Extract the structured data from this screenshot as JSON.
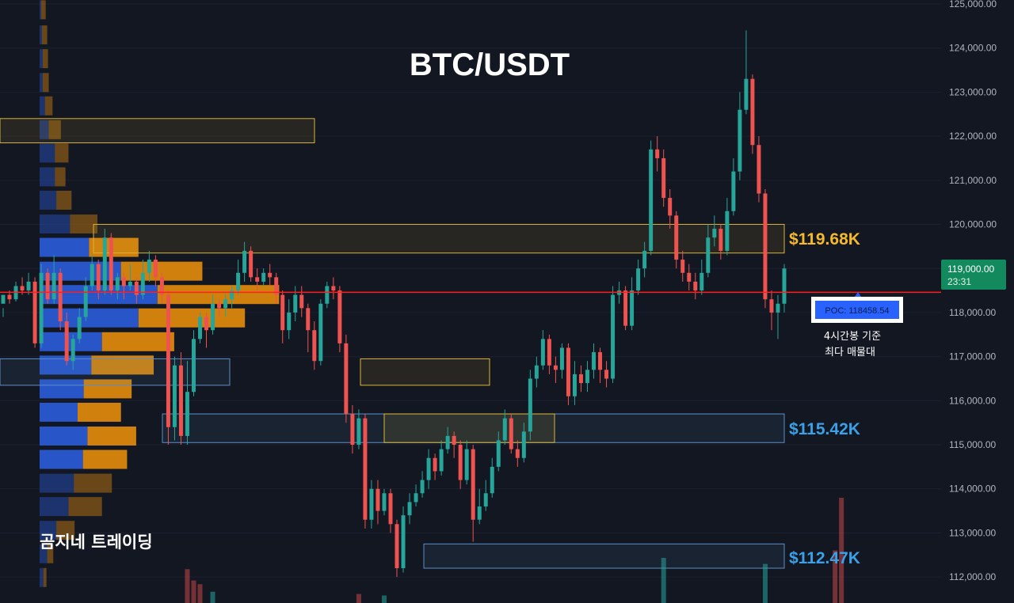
{
  "chart_data": {
    "type": "candlestick",
    "title": "BTC/USDT",
    "watermark": "곰지네 트레이딩",
    "y_axis": {
      "min": 111500,
      "max": 125000,
      "ticks": [
        "125,000.00",
        "124,000.00",
        "123,000.00",
        "122,000.00",
        "121,000.00",
        "120,000.00",
        "119,000.00",
        "118,000.00",
        "117,000.00",
        "116,000.00",
        "115,000.00",
        "114,000.00",
        "113,000.00",
        "112,000.00"
      ],
      "tick_values": [
        125000,
        124000,
        123000,
        122000,
        121000,
        120000,
        119000,
        118000,
        117000,
        116000,
        115000,
        114000,
        113000,
        112000
      ]
    },
    "current_price": {
      "label": "119,000.00",
      "countdown": "23:31",
      "value": 119000
    },
    "poc": {
      "label": "POC: 118458.54",
      "value": 118458.54,
      "note_line1": "4시간봉 기준",
      "note_line2": "최다 매물대"
    },
    "zones": [
      {
        "low": 119350,
        "high": 120000,
        "label": "$119.68K"
      },
      {
        "low": 115050,
        "high": 115700,
        "label": "$115.42K"
      },
      {
        "low": 112200,
        "high": 112750,
        "label": "$112.47K"
      }
    ],
    "candles": [
      [
        118200,
        118400,
        118100,
        117900
      ],
      [
        118400,
        118300,
        118500,
        118200
      ],
      [
        118300,
        118600,
        118700,
        118250
      ],
      [
        118600,
        118500,
        118800,
        118400
      ],
      [
        118500,
        118700,
        118900,
        118400
      ],
      [
        118700,
        117300,
        118800,
        117200
      ],
      [
        117300,
        118900,
        119100,
        117200
      ],
      [
        118900,
        118300,
        119000,
        118200
      ],
      [
        118300,
        118900,
        119300,
        118200
      ],
      [
        118900,
        117800,
        119000,
        117600
      ],
      [
        117800,
        116900,
        118000,
        116800
      ],
      [
        116900,
        117400,
        117500,
        116700
      ],
      [
        117400,
        117900,
        118100,
        117300
      ],
      [
        117900,
        118600,
        118800,
        117800
      ],
      [
        118600,
        119100,
        119300,
        118500
      ],
      [
        119100,
        118500,
        119200,
        118300
      ],
      [
        118500,
        119700,
        119900,
        118400
      ],
      [
        119700,
        118500,
        119800,
        118400
      ],
      [
        118500,
        118800,
        118900,
        118300
      ],
      [
        118800,
        118600,
        118900,
        118300
      ],
      [
        118600,
        118700,
        119100,
        118500
      ],
      [
        118700,
        118400,
        118800,
        118200
      ],
      [
        118400,
        118900,
        119200,
        118300
      ],
      [
        118900,
        119200,
        119400,
        118700
      ],
      [
        119200,
        118800,
        119300,
        118600
      ],
      [
        118800,
        118400,
        118900,
        118200
      ],
      [
        118400,
        115400,
        118500,
        115000
      ],
      [
        115400,
        116800,
        117000,
        115100
      ],
      [
        116800,
        115200,
        117100,
        115000
      ],
      [
        115200,
        116200,
        116900,
        115000
      ],
      [
        116200,
        117400,
        117600,
        116100
      ],
      [
        117400,
        117900,
        118000,
        117300
      ],
      [
        117900,
        117600,
        118000,
        117200
      ],
      [
        117600,
        118200,
        118400,
        117500
      ],
      [
        118200,
        118100,
        118300,
        117900
      ],
      [
        118100,
        118300,
        118400,
        117900
      ],
      [
        118300,
        118500,
        118600,
        118100
      ],
      [
        118500,
        118900,
        119200,
        118400
      ],
      [
        118900,
        119400,
        119600,
        118700
      ],
      [
        119400,
        118800,
        119500,
        118700
      ],
      [
        118800,
        118700,
        119000,
        118500
      ],
      [
        118700,
        118900,
        119000,
        118600
      ],
      [
        118900,
        118800,
        119100,
        118600
      ],
      [
        118800,
        118400,
        118900,
        118200
      ],
      [
        118400,
        117600,
        118500,
        117300
      ],
      [
        117600,
        118000,
        118300,
        117400
      ],
      [
        118000,
        118400,
        118600,
        117800
      ],
      [
        118400,
        118100,
        118600,
        117900
      ],
      [
        118100,
        117600,
        118200,
        117100
      ],
      [
        117600,
        116900,
        117800,
        116700
      ],
      [
        116900,
        118200,
        118300,
        116800
      ],
      [
        118200,
        118600,
        118700,
        118100
      ],
      [
        118600,
        118500,
        118800,
        118300
      ],
      [
        118500,
        117300,
        118600,
        117100
      ],
      [
        117300,
        115700,
        117500,
        115500
      ],
      [
        115700,
        115000,
        115900,
        114800
      ],
      [
        115000,
        115600,
        115800,
        114900
      ],
      [
        115600,
        113300,
        115700,
        113100
      ],
      [
        113300,
        114000,
        114200,
        113100
      ],
      [
        114000,
        113500,
        114200,
        113200
      ],
      [
        113500,
        113900,
        114000,
        113400
      ],
      [
        113900,
        113200,
        114000,
        113000
      ],
      [
        113200,
        112200,
        113300,
        112000
      ],
      [
        112200,
        113400,
        113600,
        112100
      ],
      [
        113400,
        113700,
        113900,
        113200
      ],
      [
        113700,
        113900,
        114100,
        113600
      ],
      [
        113900,
        114200,
        114400,
        113800
      ],
      [
        114200,
        114700,
        114900,
        114000
      ],
      [
        114700,
        114400,
        114800,
        114200
      ],
      [
        114400,
        114900,
        115100,
        114300
      ],
      [
        114900,
        115200,
        115400,
        114800
      ],
      [
        115200,
        115000,
        115300,
        114700
      ],
      [
        115000,
        114200,
        115100,
        114000
      ],
      [
        114200,
        114900,
        115100,
        114100
      ],
      [
        114900,
        113300,
        115000,
        112800
      ],
      [
        113300,
        113600,
        114000,
        113200
      ],
      [
        113600,
        113900,
        114200,
        113500
      ],
      [
        113900,
        114500,
        114700,
        113800
      ],
      [
        114500,
        115100,
        115300,
        114400
      ],
      [
        115100,
        115600,
        115800,
        115000
      ],
      [
        115600,
        114900,
        115700,
        114800
      ],
      [
        114900,
        114700,
        115100,
        114500
      ],
      [
        114700,
        115300,
        115500,
        114600
      ],
      [
        115300,
        116500,
        116700,
        115100
      ],
      [
        116500,
        116800,
        117000,
        116300
      ],
      [
        116800,
        117400,
        117600,
        116700
      ],
      [
        117400,
        116800,
        117500,
        116600
      ],
      [
        116800,
        116700,
        117000,
        116400
      ],
      [
        116700,
        117200,
        117300,
        116500
      ],
      [
        117200,
        116100,
        117300,
        115900
      ],
      [
        116100,
        116600,
        116900,
        115900
      ],
      [
        116600,
        116400,
        116800,
        116200
      ],
      [
        116400,
        116700,
        116900,
        116200
      ],
      [
        116700,
        117100,
        117300,
        116500
      ],
      [
        117100,
        116700,
        117200,
        116400
      ],
      [
        116700,
        116500,
        116900,
        116300
      ],
      [
        116500,
        118400,
        118600,
        116400
      ],
      [
        118400,
        118500,
        118700,
        118200
      ],
      [
        118500,
        117700,
        118600,
        117600
      ],
      [
        117700,
        118500,
        118800,
        117600
      ],
      [
        118500,
        119000,
        119200,
        118400
      ],
      [
        119000,
        119400,
        119600,
        118800
      ],
      [
        119400,
        121700,
        121900,
        119300
      ],
      [
        121700,
        121500,
        122000,
        121200
      ],
      [
        121500,
        120600,
        121700,
        120400
      ],
      [
        120600,
        120200,
        120800,
        119900
      ],
      [
        120200,
        119200,
        120300,
        119000
      ],
      [
        119200,
        118900,
        119400,
        118700
      ],
      [
        118900,
        118700,
        119100,
        118500
      ],
      [
        118700,
        118500,
        118900,
        118300
      ],
      [
        118500,
        118900,
        119200,
        118400
      ],
      [
        118900,
        119700,
        120000,
        118800
      ],
      [
        119700,
        119900,
        120200,
        119500
      ],
      [
        119900,
        119400,
        120000,
        119200
      ],
      [
        119400,
        120300,
        120600,
        119300
      ],
      [
        120300,
        121200,
        121500,
        120200
      ],
      [
        121200,
        122600,
        123000,
        121000
      ],
      [
        122600,
        123300,
        124400,
        122500
      ],
      [
        123300,
        121800,
        123400,
        121600
      ],
      [
        121800,
        120700,
        122000,
        120500
      ],
      [
        120700,
        118300,
        120800,
        118100
      ],
      [
        118300,
        118000,
        118500,
        117600
      ],
      [
        118000,
        118200,
        118400,
        117400
      ],
      [
        118200,
        119000,
        119100,
        118000
      ]
    ],
    "volume_profile": [
      {
        "price": 124850,
        "buy": 2,
        "sell": 6,
        "strong": false
      },
      {
        "price": 124280,
        "buy": 3,
        "sell": 7,
        "strong": false
      },
      {
        "price": 123740,
        "buy": 4,
        "sell": 7,
        "strong": false
      },
      {
        "price": 123200,
        "buy": 4,
        "sell": 8,
        "strong": false
      },
      {
        "price": 122670,
        "buy": 7,
        "sell": 10,
        "strong": false
      },
      {
        "price": 122130,
        "buy": 12,
        "sell": 16,
        "strong": false
      },
      {
        "price": 121600,
        "buy": 20,
        "sell": 18,
        "strong": false
      },
      {
        "price": 121060,
        "buy": 20,
        "sell": 14,
        "strong": false
      },
      {
        "price": 120530,
        "buy": 22,
        "sell": 20,
        "strong": false
      },
      {
        "price": 119990,
        "buy": 40,
        "sell": 36,
        "strong": false
      },
      {
        "price": 119460,
        "buy": 65,
        "sell": 65,
        "strong": true
      },
      {
        "price": 118920,
        "buy": 107,
        "sell": 107,
        "strong": true
      },
      {
        "price": 118390,
        "buy": 155,
        "sell": 160,
        "strong": true
      },
      {
        "price": 117860,
        "buy": 130,
        "sell": 140,
        "strong": true
      },
      {
        "price": 117320,
        "buy": 82,
        "sell": 95,
        "strong": true
      },
      {
        "price": 116790,
        "buy": 68,
        "sell": 82,
        "strong": true
      },
      {
        "price": 116250,
        "buy": 58,
        "sell": 63,
        "strong": true
      },
      {
        "price": 115720,
        "buy": 50,
        "sell": 57,
        "strong": true
      },
      {
        "price": 115180,
        "buy": 63,
        "sell": 64,
        "strong": true
      },
      {
        "price": 114650,
        "buy": 57,
        "sell": 58,
        "strong": true
      },
      {
        "price": 114110,
        "buy": 45,
        "sell": 50,
        "strong": false
      },
      {
        "price": 113580,
        "buy": 38,
        "sell": 44,
        "strong": false
      },
      {
        "price": 113040,
        "buy": 22,
        "sell": 24,
        "strong": false
      },
      {
        "price": 112510,
        "buy": 10,
        "sell": 8,
        "strong": false
      },
      {
        "price": 111970,
        "buy": 5,
        "sell": 4,
        "strong": false
      }
    ],
    "colors": {
      "background": "#131722",
      "up": "#26a69a",
      "down": "#ef5350",
      "poc_line": "#ff1f1f",
      "zone_gold": "#d9b535",
      "zone_blue": "#5b8fc7",
      "label_gold": "#f5b92a",
      "label_blue": "#3aa0e8",
      "vp_buy": "#2a5bd7",
      "vp_sell": "#e08a0c",
      "axis_text": "#b2b5be"
    }
  }
}
